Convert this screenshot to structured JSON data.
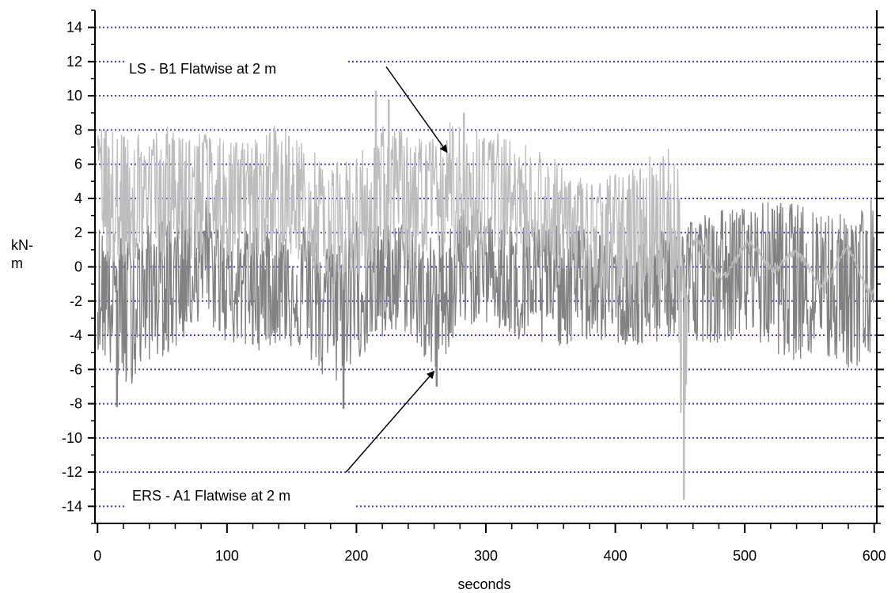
{
  "chart_data": {
    "type": "line",
    "xlabel": "seconds",
    "ylabel_lines": [
      "kN-",
      "m"
    ],
    "xlim": [
      -2,
      602
    ],
    "ylim": [
      -15,
      15
    ],
    "x_ticks": [
      0,
      100,
      200,
      300,
      400,
      500,
      600
    ],
    "y_ticks": [
      14,
      12,
      10,
      8,
      6,
      4,
      2,
      0,
      -2,
      -4,
      -6,
      -8,
      -10,
      -12,
      -14
    ],
    "grid": {
      "horizontal": true,
      "style": "dotted",
      "color": "#3a3ad0"
    },
    "series": [
      {
        "name": "LS - B1 Flatwise at 2 m",
        "color": "#bdbdbd",
        "x": [
          0,
          20,
          40,
          60,
          80,
          100,
          120,
          140,
          160,
          180,
          200,
          220,
          240,
          260,
          280,
          300,
          320,
          340,
          360,
          380,
          400,
          420,
          440,
          448,
          452,
          454,
          460,
          480,
          500,
          520,
          540,
          560,
          580,
          600
        ],
        "mean": [
          4.0,
          3.6,
          3.9,
          3.9,
          4.0,
          3.4,
          3.8,
          4.0,
          3.4,
          2.6,
          2.5,
          3.7,
          3.7,
          3.5,
          4.6,
          4.4,
          4.0,
          3.5,
          2.6,
          1.7,
          1.8,
          2.3,
          2.2,
          2.0,
          -1.8,
          -3.5,
          0.5,
          0.0,
          0.6,
          0.8,
          0.0,
          -0.3,
          0.2,
          -0.8
        ],
        "upper": [
          8.5,
          7.7,
          8.3,
          8.2,
          8.0,
          7.4,
          7.4,
          8.6,
          7.2,
          6.0,
          6.6,
          8.3,
          8.0,
          7.6,
          9.0,
          8.3,
          7.4,
          7.1,
          6.0,
          5.0,
          5.5,
          6.2,
          7.5,
          6.8,
          1.0,
          0.5,
          1.8,
          0.7,
          1.4,
          1.8,
          0.8,
          0.5,
          1.2,
          0.1
        ],
        "lower": [
          0.0,
          0.2,
          0.5,
          0.3,
          0.3,
          0.0,
          0.3,
          0.5,
          0.3,
          -1.0,
          -1.0,
          0.5,
          -0.3,
          0.3,
          0.8,
          0.7,
          0.8,
          0.3,
          -0.5,
          -2.0,
          -2.7,
          -2.4,
          -2.0,
          -1.5,
          -13.6,
          -13.0,
          -1.0,
          -1.8,
          -1.5,
          -1.6,
          -2.0,
          -1.8,
          -1.5,
          -2.5
        ],
        "peaks": [
          {
            "x": 215,
            "y": 10.3
          },
          {
            "x": 225,
            "y": 9.8
          },
          {
            "x": 283,
            "y": 9.0
          },
          {
            "x": 453,
            "y": -13.6
          }
        ]
      },
      {
        "name": "ERS - A1 Flatwise at 2 m",
        "color": "#828282",
        "x": [
          0,
          20,
          40,
          60,
          80,
          100,
          120,
          140,
          160,
          180,
          200,
          220,
          240,
          260,
          280,
          300,
          320,
          340,
          360,
          380,
          400,
          420,
          440,
          460,
          480,
          500,
          520,
          540,
          560,
          580,
          600
        ],
        "mean": [
          -1.0,
          -1.5,
          -0.8,
          -0.2,
          0.8,
          -0.5,
          -0.8,
          -1.0,
          -0.6,
          -1.7,
          -1.0,
          -0.5,
          -0.5,
          -2.5,
          0.2,
          0.0,
          -0.5,
          -0.7,
          -0.9,
          -0.7,
          -1.1,
          -1.1,
          -0.6,
          -0.6,
          -0.3,
          0.5,
          0.4,
          0.1,
          0.4,
          -0.5,
          -0.5
        ],
        "upper": [
          2.5,
          1.7,
          2.5,
          3.0,
          4.6,
          2.0,
          2.5,
          2.5,
          2.7,
          1.5,
          3.0,
          2.5,
          2.7,
          1.7,
          3.5,
          3.3,
          2.6,
          2.5,
          2.5,
          2.5,
          1.5,
          1.5,
          2.5,
          3.0,
          3.4,
          3.5,
          3.9,
          3.7,
          3.4,
          3.0,
          4.2
        ],
        "lower": [
          -4.8,
          -7.5,
          -5.5,
          -5.0,
          -3.0,
          -4.5,
          -5.0,
          -4.5,
          -5.0,
          -7.5,
          -5.5,
          -4.5,
          -3.8,
          -6.6,
          -3.5,
          -3.3,
          -4.4,
          -4.8,
          -4.6,
          -4.4,
          -4.5,
          -5.0,
          -4.2,
          -4.3,
          -4.5,
          -4.0,
          -5.0,
          -5.5,
          -5.5,
          -6.0,
          -5.8
        ],
        "peaks": [
          {
            "x": 15,
            "y": -8.2
          },
          {
            "x": 190,
            "y": -8.3
          },
          {
            "x": 262,
            "y": -7.0
          }
        ]
      }
    ],
    "annotations": [
      {
        "text": "LS - B1 Flatwise at 2 m",
        "series": 0
      },
      {
        "text": "ERS - A1 Flatwise at 2 m",
        "series": 1
      }
    ]
  }
}
